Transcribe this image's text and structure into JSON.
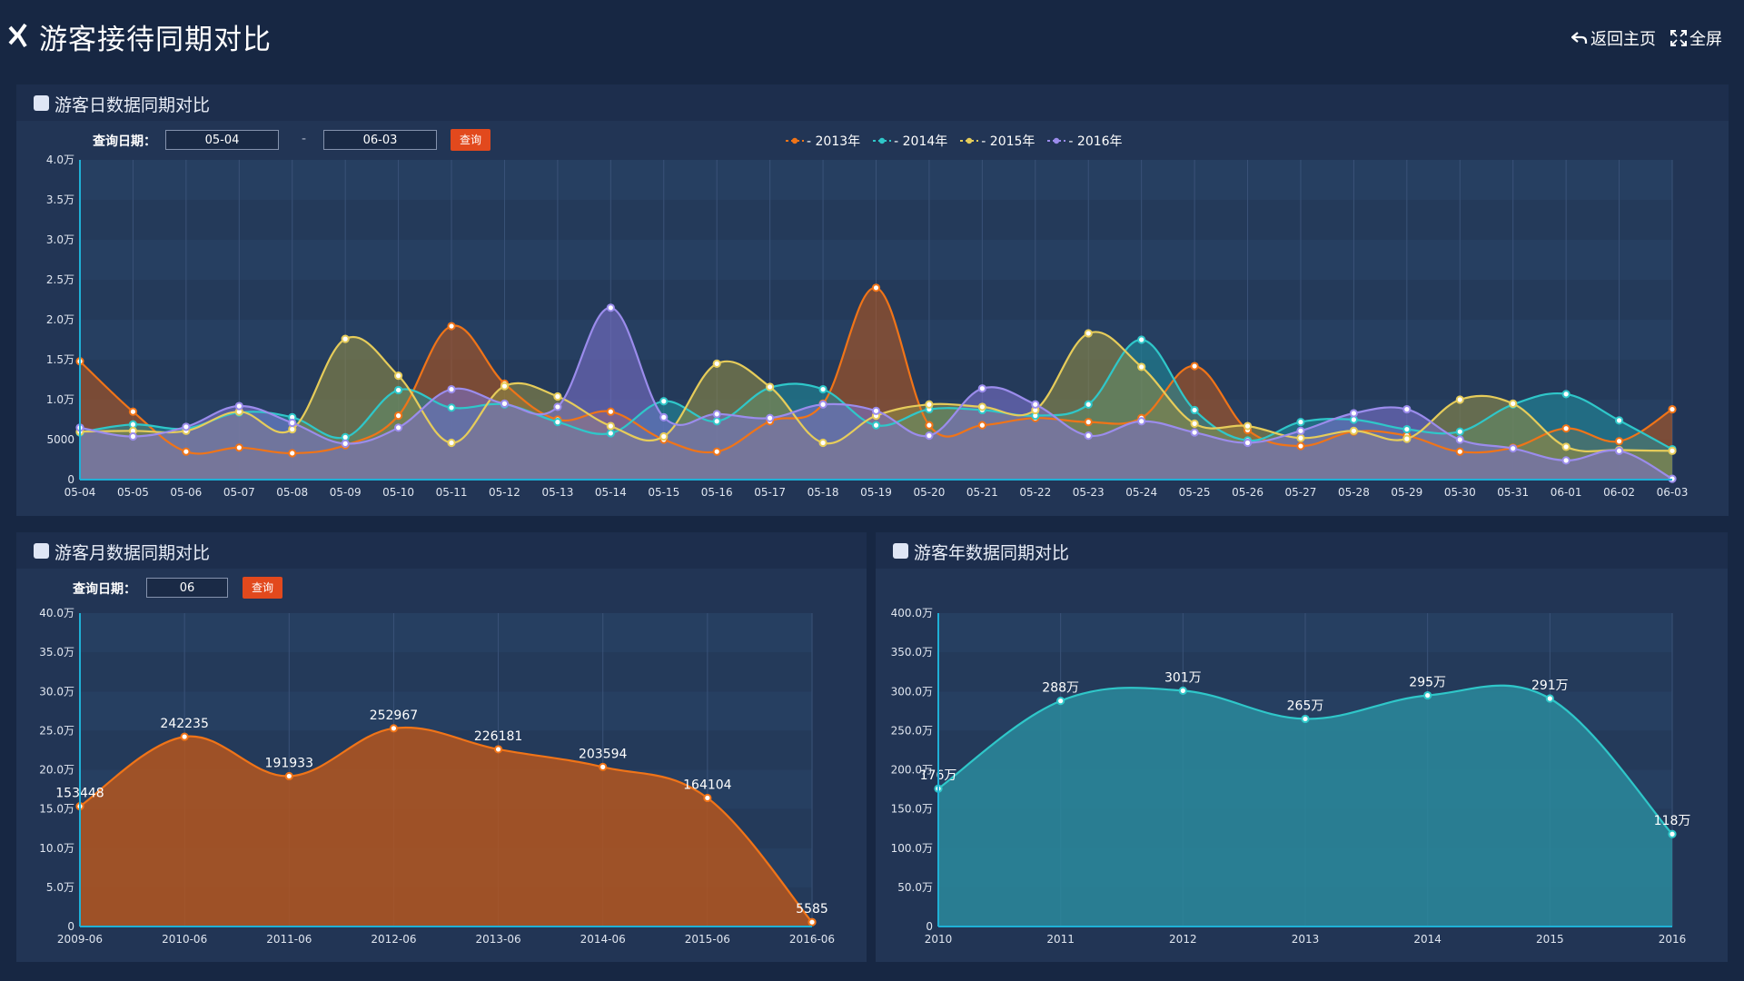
{
  "header": {
    "title": "游客接待同期对比",
    "back_label": "返回主页",
    "fullscreen_label": "全屏"
  },
  "daily": {
    "panel_title": "游客日数据同期对比",
    "query_label": "查询日期：",
    "date_from": "05-04",
    "date_to": "06-03",
    "separator": "-",
    "query_button": "查询",
    "legend": [
      {
        "label": "2013年",
        "color": "#f07418"
      },
      {
        "label": "2014年",
        "color": "#2fc7c9"
      },
      {
        "label": "2015年",
        "color": "#e6cc5a"
      },
      {
        "label": "2016年",
        "color": "#9b8cec"
      }
    ]
  },
  "monthly": {
    "panel_title": "游客月数据同期对比",
    "query_label": "查询日期：",
    "month_value": "06",
    "query_button": "查询"
  },
  "yearly": {
    "panel_title": "游客年数据同期对比"
  },
  "chart_data": [
    {
      "id": "daily",
      "type": "area",
      "categories": [
        "05-04",
        "05-05",
        "05-06",
        "05-07",
        "05-08",
        "05-09",
        "05-10",
        "05-11",
        "05-12",
        "05-13",
        "05-14",
        "05-15",
        "05-16",
        "05-17",
        "05-18",
        "05-19",
        "05-20",
        "05-21",
        "05-22",
        "05-23",
        "05-24",
        "05-25",
        "05-26",
        "05-27",
        "05-28",
        "05-29",
        "05-30",
        "05-31",
        "06-01",
        "06-02",
        "06-03"
      ],
      "ylim": [
        0,
        40000
      ],
      "yticks": [
        0,
        5000,
        10000,
        15000,
        20000,
        25000,
        30000,
        35000,
        40000
      ],
      "ytick_labels": [
        "0",
        "5000",
        "1.0万",
        "1.5万",
        "2.0万",
        "2.5万",
        "3.0万",
        "3.5万",
        "4.0万"
      ],
      "smooth": true,
      "series": [
        {
          "name": "2013年",
          "color": "#f07418",
          "fill": "#b4561e",
          "values": [
            14800,
            8500,
            3500,
            4000,
            3300,
            4300,
            8000,
            19200,
            12000,
            7500,
            8500,
            5000,
            3500,
            7300,
            9500,
            24000,
            6800,
            6800,
            7700,
            7200,
            7700,
            14200,
            6200,
            4200,
            6000,
            5500,
            3500,
            4000,
            6400,
            4800,
            8800
          ]
        },
        {
          "name": "2014年",
          "color": "#2fc7c9",
          "fill": "#1f8b9a",
          "values": [
            5900,
            6900,
            6400,
            8400,
            7800,
            5300,
            11200,
            9000,
            9400,
            7200,
            5800,
            9800,
            7300,
            11500,
            11300,
            6800,
            8800,
            8700,
            8000,
            9400,
            17500,
            8700,
            4900,
            7200,
            7500,
            6300,
            6000,
            9400,
            10700,
            7400,
            3800
          ]
        },
        {
          "name": "2015年",
          "color": "#e6cc5a",
          "fill": "#8f8a45",
          "values": [
            6000,
            6100,
            6100,
            8500,
            6300,
            17600,
            13000,
            4600,
            11700,
            10400,
            6700,
            5400,
            14500,
            11600,
            4600,
            8000,
            9400,
            9100,
            8700,
            18300,
            14100,
            7000,
            6700,
            5200,
            6100,
            5100,
            10000,
            9500,
            4100,
            3700,
            3600
          ]
        },
        {
          "name": "2016年",
          "color": "#9b8cec",
          "fill": "#7a6fc8",
          "values": [
            6500,
            5400,
            6600,
            9200,
            7100,
            4500,
            6500,
            11300,
            9500,
            9100,
            21500,
            7800,
            8200,
            7700,
            9400,
            8600,
            5500,
            11400,
            9400,
            5500,
            7300,
            5900,
            4600,
            6100,
            8300,
            8800,
            5000,
            3900,
            2400,
            3600,
            100
          ]
        }
      ]
    },
    {
      "id": "monthly",
      "type": "area",
      "categories": [
        "2009-06",
        "2010-06",
        "2011-06",
        "2012-06",
        "2013-06",
        "2014-06",
        "2015-06",
        "2016-06"
      ],
      "ylim": [
        0,
        400000
      ],
      "yticks": [
        0,
        50000,
        100000,
        150000,
        200000,
        250000,
        300000,
        350000,
        400000
      ],
      "ytick_labels": [
        "0",
        "5.0万",
        "10.0万",
        "15.0万",
        "20.0万",
        "25.0万",
        "30.0万",
        "35.0万",
        "40.0万"
      ],
      "smooth": true,
      "series": [
        {
          "name": "",
          "color": "#f07418",
          "fill": "#b4561e",
          "values": [
            153448,
            242235,
            191933,
            252967,
            226181,
            203594,
            164104,
            5585
          ],
          "labels": [
            "153448",
            "242235",
            "191933",
            "252967",
            "226181",
            "203594",
            "164104",
            "5585"
          ]
        }
      ]
    },
    {
      "id": "yearly",
      "type": "area",
      "categories": [
        "2010",
        "2011",
        "2012",
        "2013",
        "2014",
        "2015",
        "2016"
      ],
      "ylim": [
        0,
        4000000
      ],
      "yticks": [
        0,
        500000,
        1000000,
        1500000,
        2000000,
        2500000,
        3000000,
        3500000,
        4000000
      ],
      "ytick_labels": [
        "0",
        "50.0万",
        "100.0万",
        "150.0万",
        "200.0万",
        "250.0万",
        "300.0万",
        "350.0万",
        "400.0万"
      ],
      "smooth": true,
      "series": [
        {
          "name": "",
          "color": "#2fc7c9",
          "fill": "#2a8a9c",
          "values": [
            1760000,
            2880000,
            3010000,
            2650000,
            2950000,
            2910000,
            1180000
          ],
          "labels": [
            "176万",
            "288万",
            "301万",
            "265万",
            "295万",
            "291万",
            "118万"
          ]
        }
      ]
    }
  ]
}
